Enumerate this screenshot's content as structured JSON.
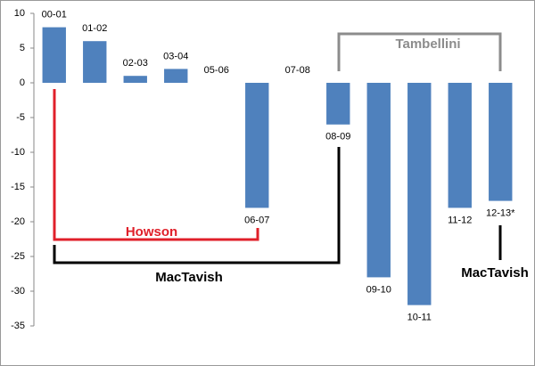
{
  "chart_data": {
    "type": "bar",
    "categories": [
      "00-01",
      "01-02",
      "02-03",
      "03-04",
      "05-06",
      "06-07",
      "07-08",
      "08-09",
      "09-10",
      "10-11",
      "11-12",
      "12-13*"
    ],
    "values": [
      8,
      6,
      1,
      2,
      0,
      -18,
      0,
      -6,
      -28,
      -32,
      -18,
      -17
    ],
    "color": "#4f81bd",
    "ylim": [
      -35,
      10
    ],
    "yticks": [
      -35,
      -30,
      -25,
      -20,
      -15,
      -10,
      -5,
      0,
      5,
      10
    ],
    "grid": false,
    "annotations": [
      "Tambellini",
      "Howson",
      "MacTavish",
      "MacTavish"
    ]
  }
}
